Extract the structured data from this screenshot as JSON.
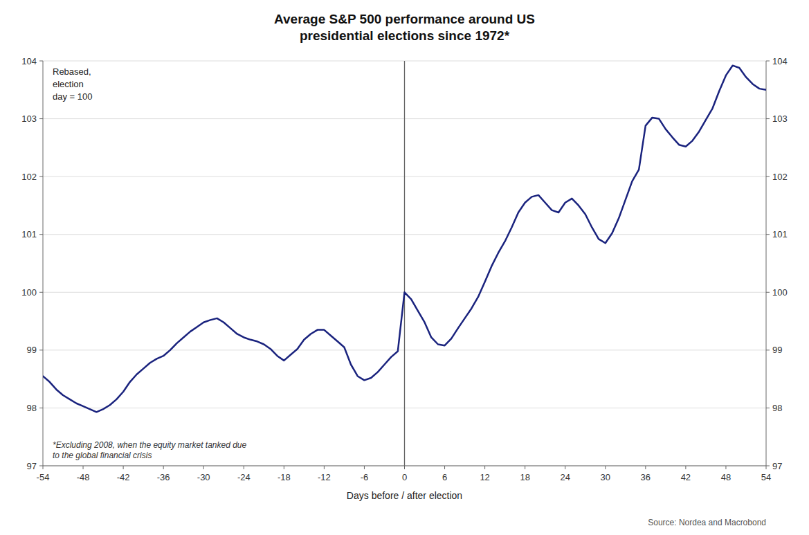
{
  "chart_data": {
    "type": "line",
    "title": "Average S&P 500 performance around US\npresidential elections since 1972*",
    "xlabel": "Days before / after election",
    "ylabel": "Rebased,\nelection\nday = 100",
    "footnote": "*Excluding 2008, when the equity market tanked due\nto the global financial crisis",
    "source": "Source: Nordea and Macrobond",
    "color": "#1a237e",
    "grid": true,
    "xlim": [
      -54,
      54
    ],
    "ylim": [
      97,
      104
    ],
    "y2lim": [
      97,
      104
    ],
    "xticks": [
      -54,
      -48,
      -42,
      -36,
      -30,
      -24,
      -18,
      -12,
      -6,
      0,
      6,
      12,
      18,
      24,
      30,
      36,
      42,
      48,
      54
    ],
    "yticks": [
      97,
      98,
      99,
      100,
      101,
      102,
      103,
      104
    ],
    "y2ticks": [
      97,
      98,
      99,
      100,
      101,
      102,
      103,
      104
    ],
    "vline_x": 0,
    "x": [
      -54,
      -53,
      -52,
      -51,
      -50,
      -49,
      -48,
      -47,
      -46,
      -45,
      -44,
      -43,
      -42,
      -41,
      -40,
      -39,
      -38,
      -37,
      -36,
      -35,
      -34,
      -33,
      -32,
      -31,
      -30,
      -29,
      -28,
      -27,
      -26,
      -25,
      -24,
      -23,
      -22,
      -21,
      -20,
      -19,
      -18,
      -17,
      -16,
      -15,
      -14,
      -13,
      -12,
      -11,
      -10,
      -9,
      -8,
      -7,
      -6,
      -5,
      -4,
      -3,
      -2,
      -1,
      0,
      1,
      2,
      3,
      4,
      5,
      6,
      7,
      8,
      9,
      10,
      11,
      12,
      13,
      14,
      15,
      16,
      17,
      18,
      19,
      20,
      21,
      22,
      23,
      24,
      25,
      26,
      27,
      28,
      29,
      30,
      31,
      32,
      33,
      34,
      35,
      36,
      37,
      38,
      39,
      40,
      41,
      42,
      43,
      44,
      45,
      46,
      47,
      48,
      49,
      50,
      51,
      52,
      53,
      54
    ],
    "values": [
      98.55,
      98.45,
      98.32,
      98.22,
      98.15,
      98.08,
      98.03,
      97.98,
      97.93,
      97.98,
      98.05,
      98.15,
      98.28,
      98.45,
      98.58,
      98.68,
      98.78,
      98.85,
      98.9,
      99.0,
      99.12,
      99.22,
      99.32,
      99.4,
      99.48,
      99.52,
      99.55,
      99.48,
      99.38,
      99.28,
      99.22,
      99.18,
      99.15,
      99.1,
      99.02,
      98.9,
      98.82,
      98.92,
      99.02,
      99.18,
      99.28,
      99.35,
      99.35,
      99.25,
      99.15,
      99.05,
      98.75,
      98.55,
      98.48,
      98.52,
      98.62,
      98.75,
      98.88,
      98.98,
      100.0,
      99.88,
      99.68,
      99.48,
      99.22,
      99.1,
      99.08,
      99.2,
      99.38,
      99.55,
      99.72,
      99.92,
      100.18,
      100.45,
      100.68,
      100.88,
      101.12,
      101.38,
      101.55,
      101.65,
      101.68,
      101.55,
      101.42,
      101.38,
      101.55,
      101.62,
      101.5,
      101.35,
      101.12,
      100.92,
      100.85,
      101.02,
      101.28,
      101.6,
      101.92,
      102.12,
      102.88,
      103.02,
      103.0,
      102.82,
      102.68,
      102.55,
      102.52,
      102.62,
      102.78,
      102.98,
      103.18,
      103.48,
      103.75,
      103.92,
      103.88,
      103.72,
      103.6,
      103.52,
      103.5
    ]
  }
}
